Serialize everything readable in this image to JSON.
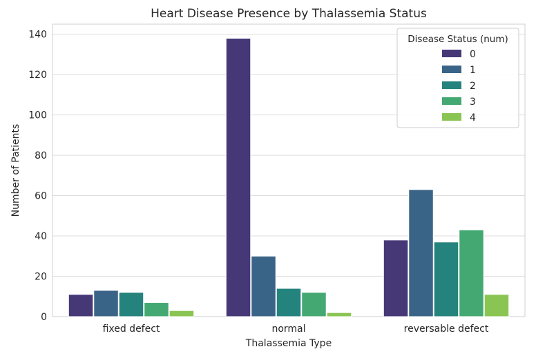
{
  "chart_data": {
    "type": "bar",
    "title": "Heart Disease Presence by Thalassemia Status",
    "xlabel": "Thalassemia Type",
    "ylabel": "Number of Patients",
    "categories": [
      "fixed defect",
      "normal",
      "reversable defect"
    ],
    "ylim": [
      0,
      145
    ],
    "yticks": [
      0,
      20,
      40,
      60,
      80,
      100,
      120,
      140
    ],
    "grid": true,
    "legend": {
      "title": "Disease Status (num)",
      "position": "top-right"
    },
    "series": [
      {
        "name": "0",
        "color": "#463877",
        "values": [
          11,
          138,
          38
        ]
      },
      {
        "name": "1",
        "color": "#3a6487",
        "values": [
          13,
          30,
          63
        ]
      },
      {
        "name": "2",
        "color": "#25837e",
        "values": [
          12,
          14,
          37
        ]
      },
      {
        "name": "3",
        "color": "#44a872",
        "values": [
          7,
          12,
          43
        ]
      },
      {
        "name": "4",
        "color": "#8ac553",
        "values": [
          3,
          2,
          11
        ]
      }
    ]
  }
}
